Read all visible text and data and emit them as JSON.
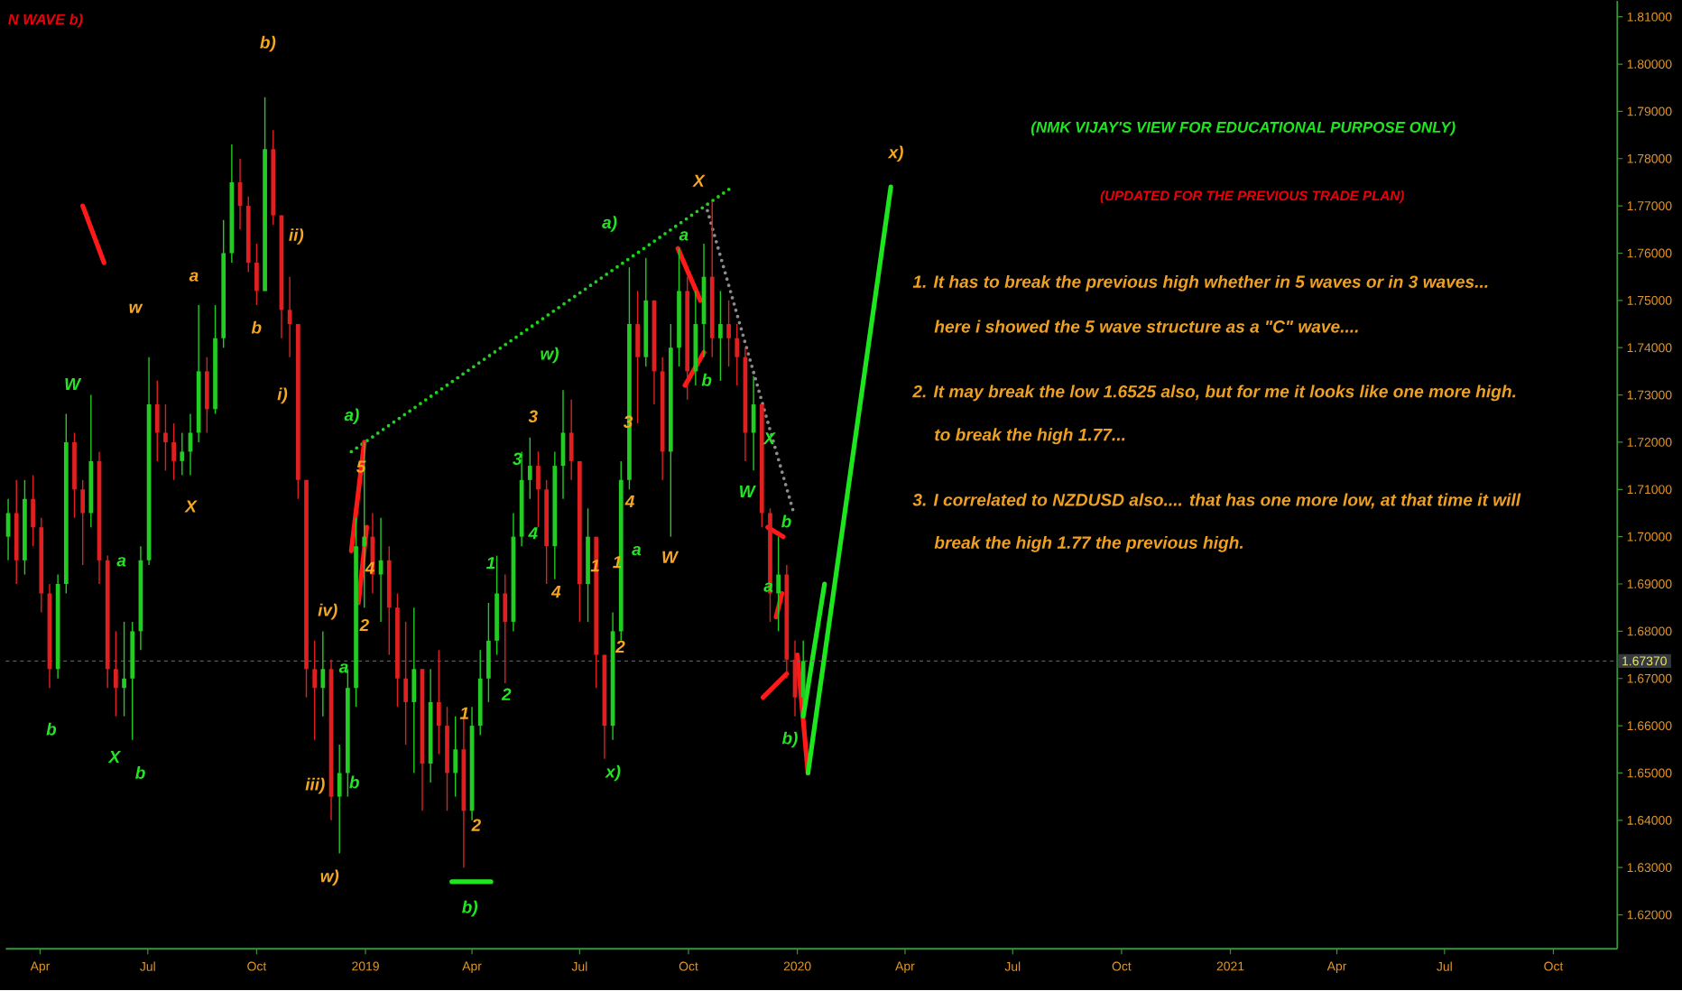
{
  "chart_data": {
    "type": "candlestick",
    "title": "(NMK VIJAY'S VIEW FOR EDUCATIONAL PURPOSE ONLY)",
    "subtitle": "(UPDATED FOR THE PREVIOUS TRADE PLAN)",
    "x": [
      "2018-03-05",
      "2018-03-12",
      "2018-03-19",
      "2018-03-26",
      "2018-04-02",
      "2018-04-09",
      "2018-04-16",
      "2018-04-23",
      "2018-04-30",
      "2018-05-07",
      "2018-05-14",
      "2018-05-21",
      "2018-05-28",
      "2018-06-04",
      "2018-06-11",
      "2018-06-18",
      "2018-06-25",
      "2018-07-02",
      "2018-07-09",
      "2018-07-16",
      "2018-07-23",
      "2018-07-30",
      "2018-08-06",
      "2018-08-13",
      "2018-08-20",
      "2018-08-27",
      "2018-09-03",
      "2018-09-10",
      "2018-09-17",
      "2018-09-24",
      "2018-10-01",
      "2018-10-08",
      "2018-10-15",
      "2018-10-22",
      "2018-10-29",
      "2018-11-05",
      "2018-11-12",
      "2018-11-19",
      "2018-11-26",
      "2018-12-03",
      "2018-12-10",
      "2018-12-17",
      "2018-12-24",
      "2018-12-31",
      "2019-01-07",
      "2019-01-14",
      "2019-01-21",
      "2019-01-28",
      "2019-02-04",
      "2019-02-11",
      "2019-02-18",
      "2019-02-25",
      "2019-03-04",
      "2019-03-11",
      "2019-03-18",
      "2019-03-25",
      "2019-04-01",
      "2019-04-08",
      "2019-04-15",
      "2019-04-22",
      "2019-04-29",
      "2019-05-06",
      "2019-05-13",
      "2019-05-20",
      "2019-05-27",
      "2019-06-03",
      "2019-06-10",
      "2019-06-17",
      "2019-06-24",
      "2019-07-01",
      "2019-07-08",
      "2019-07-15",
      "2019-07-22",
      "2019-07-29",
      "2019-08-05",
      "2019-08-12",
      "2019-08-19",
      "2019-08-26",
      "2019-09-02",
      "2019-09-09",
      "2019-09-16",
      "2019-09-23",
      "2019-09-30",
      "2019-10-07",
      "2019-10-14",
      "2019-10-21",
      "2019-10-28",
      "2019-11-04",
      "2019-11-11",
      "2019-11-18",
      "2019-11-25",
      "2019-12-02",
      "2019-12-09",
      "2019-12-16",
      "2019-12-23",
      "2019-12-30",
      "2020-01-06"
    ],
    "ohlc": [
      [
        1.7,
        1.708,
        1.695,
        1.705
      ],
      [
        1.705,
        1.712,
        1.69,
        1.695
      ],
      [
        1.695,
        1.712,
        1.692,
        1.708
      ],
      [
        1.708,
        1.713,
        1.698,
        1.702
      ],
      [
        1.702,
        1.704,
        1.684,
        1.688
      ],
      [
        1.688,
        1.69,
        1.668,
        1.672
      ],
      [
        1.672,
        1.692,
        1.67,
        1.69
      ],
      [
        1.69,
        1.726,
        1.688,
        1.72
      ],
      [
        1.72,
        1.722,
        1.704,
        1.71
      ],
      [
        1.71,
        1.712,
        1.694,
        1.705
      ],
      [
        1.705,
        1.73,
        1.702,
        1.716
      ],
      [
        1.716,
        1.718,
        1.69,
        1.695
      ],
      [
        1.695,
        1.696,
        1.668,
        1.672
      ],
      [
        1.672,
        1.68,
        1.662,
        1.668
      ],
      [
        1.668,
        1.682,
        1.662,
        1.67
      ],
      [
        1.67,
        1.682,
        1.657,
        1.68
      ],
      [
        1.68,
        1.698,
        1.676,
        1.695
      ],
      [
        1.695,
        1.738,
        1.694,
        1.728
      ],
      [
        1.728,
        1.733,
        1.716,
        1.722
      ],
      [
        1.722,
        1.728,
        1.714,
        1.72
      ],
      [
        1.72,
        1.724,
        1.712,
        1.716
      ],
      [
        1.716,
        1.722,
        1.713,
        1.718
      ],
      [
        1.718,
        1.726,
        1.713,
        1.722
      ],
      [
        1.722,
        1.749,
        1.72,
        1.735
      ],
      [
        1.735,
        1.738,
        1.722,
        1.727
      ],
      [
        1.727,
        1.749,
        1.726,
        1.742
      ],
      [
        1.742,
        1.767,
        1.74,
        1.76
      ],
      [
        1.76,
        1.783,
        1.758,
        1.775
      ],
      [
        1.775,
        1.78,
        1.765,
        1.77
      ],
      [
        1.77,
        1.772,
        1.756,
        1.758
      ],
      [
        1.758,
        1.762,
        1.749,
        1.752
      ],
      [
        1.752,
        1.793,
        1.752,
        1.782
      ],
      [
        1.782,
        1.786,
        1.766,
        1.768
      ],
      [
        1.768,
        1.768,
        1.742,
        1.748
      ],
      [
        1.748,
        1.755,
        1.738,
        1.745
      ],
      [
        1.745,
        1.745,
        1.708,
        1.712
      ],
      [
        1.712,
        1.712,
        1.666,
        1.672
      ],
      [
        1.672,
        1.678,
        1.657,
        1.668
      ],
      [
        1.668,
        1.68,
        1.662,
        1.672
      ],
      [
        1.672,
        1.674,
        1.64,
        1.645
      ],
      [
        1.645,
        1.656,
        1.633,
        1.65
      ],
      [
        1.65,
        1.672,
        1.645,
        1.668
      ],
      [
        1.668,
        1.704,
        1.664,
        1.698
      ],
      [
        1.698,
        1.72,
        1.685,
        1.7
      ],
      [
        1.7,
        1.705,
        1.688,
        1.692
      ],
      [
        1.692,
        1.704,
        1.682,
        1.695
      ],
      [
        1.695,
        1.698,
        1.675,
        1.685
      ],
      [
        1.685,
        1.688,
        1.664,
        1.67
      ],
      [
        1.67,
        1.682,
        1.656,
        1.665
      ],
      [
        1.665,
        1.685,
        1.65,
        1.672
      ],
      [
        1.672,
        1.672,
        1.642,
        1.652
      ],
      [
        1.652,
        1.672,
        1.648,
        1.665
      ],
      [
        1.665,
        1.676,
        1.654,
        1.66
      ],
      [
        1.66,
        1.664,
        1.642,
        1.65
      ],
      [
        1.65,
        1.662,
        1.645,
        1.655
      ],
      [
        1.655,
        1.662,
        1.63,
        1.642
      ],
      [
        1.642,
        1.664,
        1.64,
        1.66
      ],
      [
        1.66,
        1.676,
        1.658,
        1.67
      ],
      [
        1.67,
        1.686,
        1.665,
        1.678
      ],
      [
        1.678,
        1.696,
        1.675,
        1.688
      ],
      [
        1.688,
        1.692,
        1.669,
        1.682
      ],
      [
        1.682,
        1.705,
        1.68,
        1.7
      ],
      [
        1.7,
        1.718,
        1.698,
        1.712
      ],
      [
        1.712,
        1.721,
        1.708,
        1.715
      ],
      [
        1.715,
        1.718,
        1.702,
        1.71
      ],
      [
        1.71,
        1.712,
        1.69,
        1.698
      ],
      [
        1.698,
        1.718,
        1.691,
        1.715
      ],
      [
        1.715,
        1.731,
        1.708,
        1.722
      ],
      [
        1.722,
        1.729,
        1.712,
        1.716
      ],
      [
        1.716,
        1.716,
        1.682,
        1.69
      ],
      [
        1.69,
        1.706,
        1.682,
        1.7
      ],
      [
        1.7,
        1.7,
        1.668,
        1.675
      ],
      [
        1.675,
        1.675,
        1.653,
        1.66
      ],
      [
        1.66,
        1.684,
        1.657,
        1.68
      ],
      [
        1.68,
        1.716,
        1.678,
        1.712
      ],
      [
        1.712,
        1.757,
        1.71,
        1.745
      ],
      [
        1.745,
        1.752,
        1.724,
        1.738
      ],
      [
        1.738,
        1.759,
        1.736,
        1.75
      ],
      [
        1.75,
        1.75,
        1.728,
        1.735
      ],
      [
        1.735,
        1.738,
        1.712,
        1.718
      ],
      [
        1.718,
        1.745,
        1.7,
        1.74
      ],
      [
        1.74,
        1.761,
        1.736,
        1.752
      ],
      [
        1.752,
        1.755,
        1.729,
        1.735
      ],
      [
        1.735,
        1.752,
        1.732,
        1.745
      ],
      [
        1.745,
        1.762,
        1.738,
        1.755
      ],
      [
        1.755,
        1.771,
        1.738,
        1.742
      ],
      [
        1.742,
        1.752,
        1.733,
        1.745
      ],
      [
        1.745,
        1.75,
        1.736,
        1.742
      ],
      [
        1.742,
        1.745,
        1.732,
        1.738
      ],
      [
        1.738,
        1.74,
        1.716,
        1.722
      ],
      [
        1.722,
        1.734,
        1.714,
        1.728
      ],
      [
        1.728,
        1.728,
        1.702,
        1.705
      ],
      [
        1.705,
        1.706,
        1.682,
        1.688
      ],
      [
        1.688,
        1.7,
        1.68,
        1.692
      ],
      [
        1.692,
        1.694,
        1.67,
        1.674
      ],
      [
        1.674,
        1.678,
        1.662,
        1.666
      ],
      [
        1.666,
        1.678,
        1.664,
        1.6737
      ]
    ],
    "colors": [
      "#22cc22",
      "#e02020",
      "#22cc22",
      "#e02020",
      "#e02020",
      "#e02020",
      "#22cc22",
      "#22cc22",
      "#e02020",
      "#e02020",
      "#22cc22",
      "#e02020",
      "#e02020",
      "#e02020",
      "#22cc22",
      "#22cc22",
      "#22cc22",
      "#22cc22",
      "#e02020",
      "#e02020",
      "#e02020",
      "#22cc22",
      "#22cc22",
      "#22cc22",
      "#e02020",
      "#22cc22",
      "#22cc22",
      "#22cc22",
      "#e02020",
      "#e02020",
      "#e02020",
      "#22cc22",
      "#e02020",
      "#e02020",
      "#e02020",
      "#e02020",
      "#e02020",
      "#e02020",
      "#22cc22",
      "#e02020",
      "#22cc22",
      "#22cc22",
      "#22cc22",
      "#22cc22",
      "#e02020",
      "#22cc22",
      "#e02020",
      "#e02020",
      "#e02020",
      "#22cc22",
      "#e02020",
      "#22cc22",
      "#e02020",
      "#e02020",
      "#22cc22",
      "#e02020",
      "#22cc22",
      "#22cc22",
      "#22cc22",
      "#22cc22",
      "#e02020",
      "#22cc22",
      "#22cc22",
      "#22cc22",
      "#e02020",
      "#e02020",
      "#22cc22",
      "#22cc22",
      "#e02020",
      "#e02020",
      "#22cc22",
      "#e02020",
      "#e02020",
      "#22cc22",
      "#22cc22",
      "#22cc22",
      "#e02020",
      "#22cc22",
      "#e02020",
      "#e02020",
      "#22cc22",
      "#22cc22",
      "#e02020",
      "#22cc22",
      "#22cc22",
      "#e02020",
      "#22cc22",
      "#e02020",
      "#e02020",
      "#e02020",
      "#22cc22",
      "#e02020",
      "#e02020",
      "#22cc22",
      "#e02020",
      "#e02020",
      "#22cc22"
    ],
    "series": [
      {
        "type": "line",
        "x": [
          "2018-12-20",
          "2019-11-07"
        ],
        "values": [
          1.718,
          1.774
        ],
        "color": "#1ed21e",
        "line_style": "dotted"
      },
      {
        "type": "line",
        "x": [
          "2019-10-17",
          "2019-12-29"
        ],
        "values": [
          1.769,
          1.705
        ],
        "color": "#8c8c8c",
        "line_style": "dotted"
      },
      {
        "type": "line",
        "x": [
          "2018-12-20",
          "2018-12-31"
        ],
        "values": [
          1.697,
          1.72
        ],
        "color": "#ff1a1a",
        "line_style": "solid"
      },
      {
        "type": "line",
        "x": [
          "2018-12-26",
          "2019-01-02"
        ],
        "values": [
          1.686,
          1.702
        ],
        "color": "#ff1a1a",
        "line_style": "solid"
      },
      {
        "type": "line",
        "x": [
          "2019-09-22",
          "2019-10-11"
        ],
        "values": [
          1.761,
          1.75
        ],
        "color": "#ff1a1a",
        "line_style": "solid"
      },
      {
        "type": "line",
        "x": [
          "2019-09-28",
          "2019-10-14"
        ],
        "values": [
          1.732,
          1.739
        ],
        "color": "#ff1a1a",
        "line_style": "solid"
      },
      {
        "type": "line",
        "x": [
          "2019-12-07",
          "2019-12-20"
        ],
        "values": [
          1.702,
          1.7
        ],
        "color": "#ff1a1a",
        "line_style": "solid"
      },
      {
        "type": "line",
        "x": [
          "2019-12-14",
          "2019-12-19"
        ],
        "values": [
          1.683,
          1.688
        ],
        "color": "#ff1a1a",
        "line_style": "solid"
      },
      {
        "type": "line",
        "x": [
          "2019-12-03",
          "2019-12-23"
        ],
        "values": [
          1.666,
          1.671
        ],
        "color": "#ff1a1a",
        "line_style": "solid"
      },
      {
        "type": "line",
        "x": [
          "2018-05-07",
          "2018-05-25"
        ],
        "values": [
          1.77,
          1.758
        ],
        "color": "#ff1a1a",
        "line_style": "solid"
      },
      {
        "type": "line",
        "x": [
          "2020-01-01",
          "2020-01-10"
        ],
        "values": [
          1.675,
          1.65
        ],
        "color": "#ff1a1a",
        "line_style": "solid"
      },
      {
        "type": "line",
        "x": [
          "2020-01-10",
          "2020-03-20"
        ],
        "values": [
          1.65,
          1.774
        ],
        "color": "#1ee61e",
        "line_style": "solid"
      },
      {
        "type": "line",
        "x": [
          "2020-01-06",
          "2020-01-24"
        ],
        "values": [
          1.662,
          1.69
        ],
        "color": "#1ee61e",
        "line_style": "solid"
      },
      {
        "type": "line",
        "x": [
          "2019-03-15",
          "2019-04-17"
        ],
        "values": [
          1.627,
          1.627
        ],
        "color": "#1ee61e",
        "line_style": "solid"
      }
    ],
    "xlim": [
      "2018-03-03",
      "2021-11-24"
    ],
    "ylim": [
      1.6128,
      1.8134
    ],
    "xticks": [
      {
        "value": "2018-04-01",
        "label": "Apr"
      },
      {
        "value": "2018-07-01",
        "label": "Jul"
      },
      {
        "value": "2018-10-01",
        "label": "Oct"
      },
      {
        "value": "2019-01-01",
        "label": "2019"
      },
      {
        "value": "2019-04-01",
        "label": "Apr"
      },
      {
        "value": "2019-07-01",
        "label": "Jul"
      },
      {
        "value": "2019-10-01",
        "label": "Oct"
      },
      {
        "value": "2020-01-01",
        "label": "2020"
      },
      {
        "value": "2020-04-01",
        "label": "Apr"
      },
      {
        "value": "2020-07-01",
        "label": "Jul"
      },
      {
        "value": "2020-10-01",
        "label": "Oct"
      },
      {
        "value": "2021-01-01",
        "label": "2021"
      },
      {
        "value": "2021-04-01",
        "label": "Apr"
      },
      {
        "value": "2021-07-01",
        "label": "Jul"
      },
      {
        "value": "2021-10-01",
        "label": "Oct"
      }
    ],
    "yticks": [
      {
        "value": 1.62,
        "label": "1.62000"
      },
      {
        "value": 1.63,
        "label": "1.63000"
      },
      {
        "value": 1.64,
        "label": "1.64000"
      },
      {
        "value": 1.65,
        "label": "1.65000"
      },
      {
        "value": 1.66,
        "label": "1.66000"
      },
      {
        "value": 1.67,
        "label": "1.67000"
      },
      {
        "value": 1.68,
        "label": "1.68000"
      },
      {
        "value": 1.69,
        "label": "1.69000"
      },
      {
        "value": 1.7,
        "label": "1.70000"
      },
      {
        "value": 1.71,
        "label": "1.71000"
      },
      {
        "value": 1.72,
        "label": "1.72000"
      },
      {
        "value": 1.73,
        "label": "1.73000"
      },
      {
        "value": 1.74,
        "label": "1.74000"
      },
      {
        "value": 1.75,
        "label": "1.75000"
      },
      {
        "value": 1.76,
        "label": "1.76000"
      },
      {
        "value": 1.77,
        "label": "1.77000"
      },
      {
        "value": 1.78,
        "label": "1.78000"
      },
      {
        "value": 1.79,
        "label": "1.79000"
      },
      {
        "value": 1.8,
        "label": "1.80000"
      },
      {
        "value": 1.81,
        "label": "1.81000"
      }
    ],
    "ref_lines": [
      {
        "axis": "y",
        "value": 1.6737,
        "label": "1.67370",
        "color": "#6e6e6e",
        "line_style": "dashed"
      }
    ],
    "annotations": [
      "N WAVE b)",
      "1. It has to break the previous high whether in 5 waves or in 3 waves...",
      "here i showed the 5 wave structure as a \"C\" wave....",
      "2. It may break the low 1.6525 also, but for me it looks like one more high.",
      "to break the high 1.77...",
      "3. I correlated to NZDUSD also.... that has one more low, at that time it will",
      "break the high 1.77 the previous high.",
      "b)",
      "ii)",
      "w",
      "a",
      "b",
      "i)",
      "W",
      "a)",
      "X",
      "a",
      "5",
      "4",
      "iv)",
      "2",
      "a",
      "b",
      "X",
      "b",
      "iii)",
      "b",
      "w)",
      "1",
      "2",
      "b)",
      "1",
      "2",
      "3",
      "3",
      "4",
      "4",
      "w)",
      "X",
      "a)",
      "a",
      "b",
      "3",
      "4",
      "1",
      "1",
      "a",
      "W",
      "2",
      "x)",
      "X",
      "W",
      "b",
      "a",
      "b)",
      "x)"
    ]
  }
}
